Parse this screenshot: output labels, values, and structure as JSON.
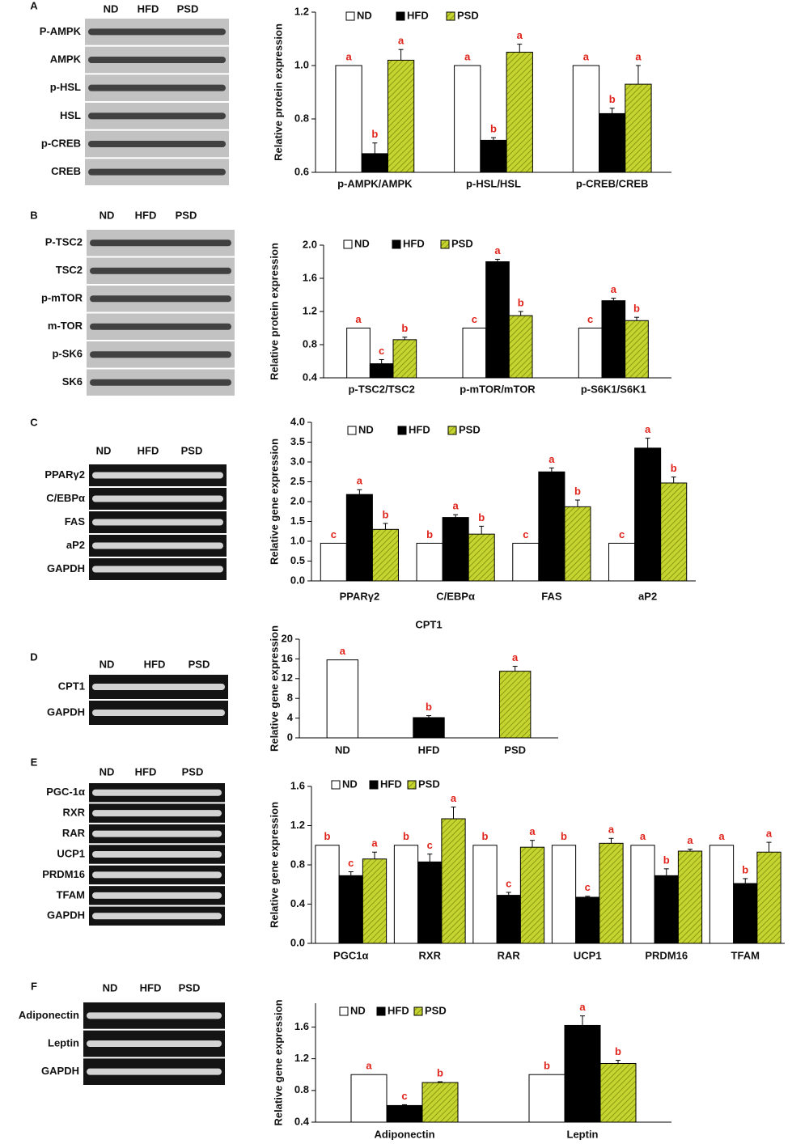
{
  "chart_data": [
    {
      "type": "bar",
      "y_label": "Relative protein expression",
      "categories": [
        "p-AMPK/AMPK",
        "p-HSL/HSL",
        "p-CREB/CREB"
      ],
      "ylim": [
        0.6,
        1.2
      ],
      "yticks": [
        0.6,
        0.8,
        {
          "value": 1,
          "label": "1.0"
        },
        1.2
      ],
      "series": [
        {
          "name": "ND",
          "color": "#ffffff",
          "values": [
            1,
            1,
            1
          ],
          "errors": [
            0,
            0,
            0
          ],
          "letters": [
            "a",
            "a",
            "a"
          ]
        },
        {
          "name": "HFD",
          "color": "#000000",
          "values": [
            0.67,
            0.72,
            0.82
          ],
          "errors": [
            0.04,
            0.01,
            0.02
          ],
          "letters": [
            "b",
            "b",
            "b"
          ]
        },
        {
          "name": "PSD",
          "color": "#c5d42f",
          "values": [
            1.02,
            1.05,
            0.93
          ],
          "errors": [
            0.04,
            0.03,
            0.07
          ],
          "letters": [
            "a",
            "a",
            "a"
          ]
        }
      ]
    },
    {
      "type": "bar",
      "y_label": "Relative protein expression",
      "categories": [
        "p-TSC2/TSC2",
        "p-mTOR/mTOR",
        "p-S6K1/S6K1"
      ],
      "ylim": [
        0.4,
        2
      ],
      "yticks": [
        0.4,
        0.8,
        1.2,
        1.6,
        {
          "value": 2,
          "label": "2.0"
        }
      ],
      "series": [
        {
          "name": "ND",
          "color": "#ffffff",
          "values": [
            1,
            1,
            1
          ],
          "errors": [
            0,
            0,
            0
          ],
          "letters": [
            "a",
            "c",
            "c"
          ]
        },
        {
          "name": "HFD",
          "color": "#000000",
          "values": [
            0.57,
            1.8,
            1.33
          ],
          "errors": [
            0.05,
            0.03,
            0.03
          ],
          "letters": [
            "c",
            "a",
            "a"
          ]
        },
        {
          "name": "PSD",
          "color": "#c5d42f",
          "values": [
            0.86,
            1.15,
            1.09
          ],
          "errors": [
            0.03,
            0.05,
            0.04
          ],
          "letters": [
            "b",
            "b",
            "b"
          ]
        }
      ]
    },
    {
      "type": "bar",
      "y_label": "Relative gene expression",
      "categories": [
        "PPARγ2",
        "C/EBPα",
        "FAS",
        "aP2"
      ],
      "ylim": [
        0,
        4
      ],
      "yticks": [
        {
          "value": 0,
          "label": "0.0"
        },
        0.5,
        {
          "value": 1,
          "label": "1.0"
        },
        1.5,
        {
          "value": 2,
          "label": "2.0"
        },
        2.5,
        {
          "value": 3,
          "label": "3.0"
        },
        3.5,
        {
          "value": 4,
          "label": "4.0"
        }
      ],
      "series": [
        {
          "name": "ND",
          "color": "#ffffff",
          "values": [
            0.95,
            0.95,
            0.95,
            0.95
          ],
          "errors": [
            0,
            0,
            0,
            0
          ],
          "letters": [
            "c",
            "b",
            "c",
            "c"
          ]
        },
        {
          "name": "HFD",
          "color": "#000000",
          "values": [
            2.18,
            1.6,
            2.75,
            3.35
          ],
          "errors": [
            0.12,
            0.07,
            0.1,
            0.25
          ],
          "letters": [
            "a",
            "a",
            "a",
            "a"
          ]
        },
        {
          "name": "PSD",
          "color": "#c5d42f",
          "values": [
            1.3,
            1.18,
            1.87,
            2.47
          ],
          "errors": [
            0.15,
            0.2,
            0.17,
            0.15
          ],
          "letters": [
            "b",
            "b",
            "b",
            "b"
          ]
        }
      ]
    },
    {
      "type": "bar",
      "title": "CPT1",
      "y_label": "Relative gene expression",
      "categories": [
        "ND",
        "HFD",
        "PSD"
      ],
      "ylim": [
        0,
        20
      ],
      "yticks": [
        0,
        4,
        8,
        12,
        16,
        20
      ],
      "series": [
        {
          "color": "#ffffff",
          "values": [
            15.8,
            null,
            null
          ],
          "errors": [
            0,
            null,
            null
          ],
          "letters": [
            "a",
            null,
            null
          ]
        },
        {
          "color": "#000000",
          "values": [
            null,
            4.1,
            null
          ],
          "errors": [
            null,
            0.4,
            null
          ],
          "letters": [
            null,
            "b",
            null
          ]
        },
        {
          "color": "#c5d42f",
          "values": [
            null,
            null,
            13.5
          ],
          "errors": [
            null,
            null,
            1
          ],
          "letters": [
            null,
            null,
            "a"
          ]
        }
      ]
    },
    {
      "type": "bar",
      "y_label": "Relative gene expression",
      "categories": [
        "PGC1α",
        "RXR",
        "RAR",
        "UCP1",
        "PRDM16",
        "TFAM"
      ],
      "ylim": [
        0,
        1.6
      ],
      "yticks": [
        {
          "value": 0,
          "label": "0.0"
        },
        0.4,
        0.8,
        1.2,
        1.6
      ],
      "series": [
        {
          "name": "ND",
          "color": "#ffffff",
          "values": [
            1,
            1,
            1,
            1,
            1,
            1
          ],
          "errors": [
            0,
            0,
            0,
            0,
            0,
            0
          ],
          "letters": [
            "b",
            "b",
            "b",
            "b",
            "a",
            "a"
          ]
        },
        {
          "name": "HFD",
          "color": "#000000",
          "values": [
            0.69,
            0.83,
            0.49,
            0.47,
            0.69,
            0.61
          ],
          "errors": [
            0.04,
            0.08,
            0.03,
            0.01,
            0.07,
            0.05
          ],
          "letters": [
            "c",
            "c",
            "c",
            "c",
            "b",
            "b"
          ]
        },
        {
          "name": "PSD",
          "color": "#c5d42f",
          "values": [
            0.86,
            1.27,
            0.98,
            1.02,
            0.94,
            0.93
          ],
          "errors": [
            0.07,
            0.12,
            0.07,
            0.05,
            0.02,
            0.1
          ],
          "letters": [
            "a",
            "a",
            "a",
            "a",
            "a",
            "a"
          ]
        }
      ]
    },
    {
      "type": "bar",
      "y_label": "Relative gene expression",
      "categories": [
        "Adiponectin",
        "Leptin"
      ],
      "ylim": [
        0.4,
        1.9
      ],
      "yticks": [
        0.4,
        0.8,
        1.2,
        1.6
      ],
      "series": [
        {
          "name": "ND",
          "color": "#ffffff",
          "values": [
            1,
            1
          ],
          "errors": [
            0,
            0
          ],
          "letters": [
            "a",
            "b"
          ]
        },
        {
          "name": "HFD",
          "color": "#000000",
          "values": [
            0.61,
            1.62
          ],
          "errors": [
            0.01,
            0.12
          ],
          "letters": [
            "c",
            "a"
          ]
        },
        {
          "name": "PSD",
          "color": "#c5d42f",
          "values": [
            0.9,
            1.14
          ],
          "errors": [
            0.01,
            0.04
          ],
          "letters": [
            "b",
            "b"
          ]
        }
      ]
    }
  ],
  "blots": [
    {
      "panel": "A",
      "style": "western",
      "lanes": [
        "ND",
        "HFD",
        "PSD"
      ],
      "rows": [
        "P-AMPK",
        "AMPK",
        "p-HSL",
        "HSL",
        "p-CREB",
        "CREB"
      ]
    },
    {
      "panel": "B",
      "style": "western",
      "lanes": [
        "ND",
        "HFD",
        "PSD"
      ],
      "rows": [
        "P-TSC2",
        "TSC2",
        "p-mTOR",
        "m-TOR",
        "p-SK6",
        "SK6"
      ]
    },
    {
      "panel": "C",
      "style": "gel",
      "lanes": [
        "ND",
        "HFD",
        "PSD"
      ],
      "rows": [
        "PPARγ2",
        "C/EBPα",
        "FAS",
        "aP2",
        "GAPDH"
      ]
    },
    {
      "panel": "D",
      "style": "gel",
      "lanes": [
        "ND",
        "HFD",
        "PSD"
      ],
      "rows": [
        "CPT1",
        "GAPDH"
      ]
    },
    {
      "panel": "E",
      "style": "gel",
      "lanes": [
        "ND",
        "HFD",
        "PSD"
      ],
      "rows": [
        "PGC-1α",
        "RXR",
        "RAR",
        "UCP1",
        "PRDM16",
        "TFAM",
        "GAPDH"
      ]
    },
    {
      "panel": "F",
      "style": "gel",
      "lanes": [
        "ND",
        "HFD",
        "PSD"
      ],
      "rows": [
        "Adiponectin",
        "Leptin",
        "GAPDH"
      ]
    }
  ]
}
